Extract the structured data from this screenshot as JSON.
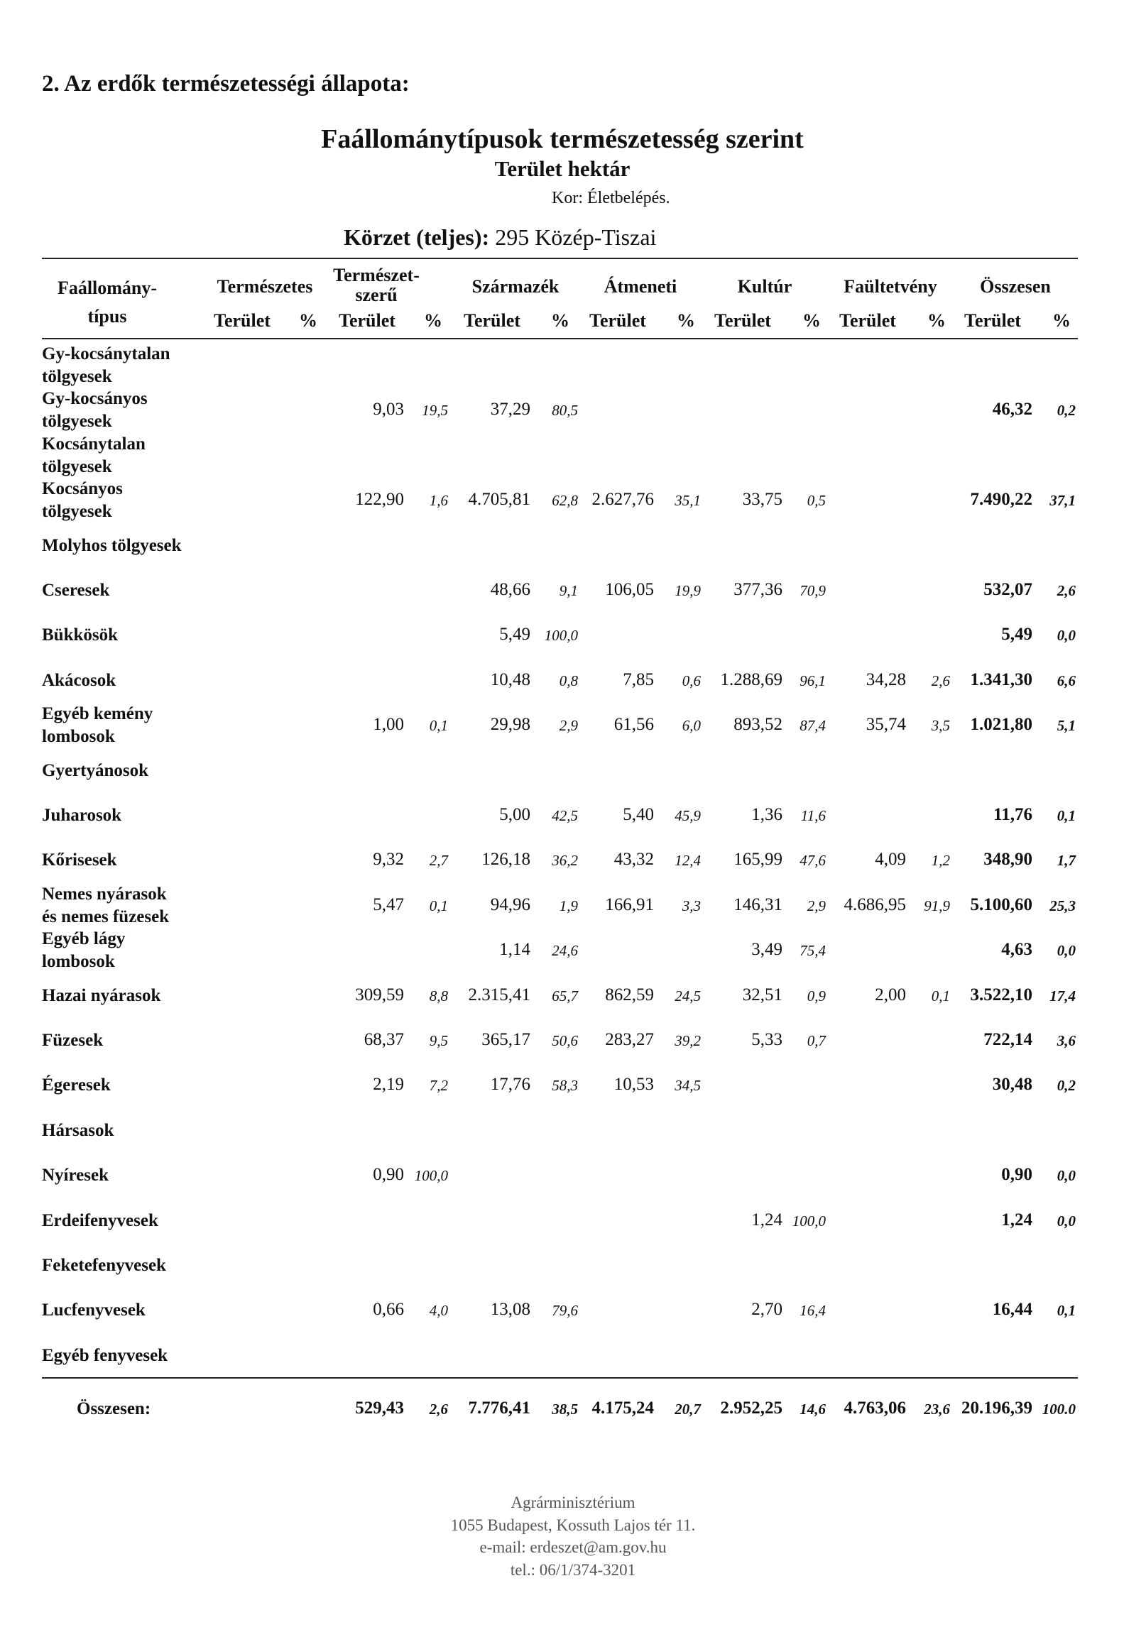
{
  "section_heading": "2. Az erdők természetességi állapota:",
  "title": "Faállománytípusok természetesség szerint",
  "subtitle": "Terület hektár",
  "kor": "Kor: Életbelépés.",
  "korzet_label": "Körzet (teljes):",
  "korzet_value": "295 Közép-Tiszai",
  "table": {
    "type_header": [
      "Faállomány-",
      "típus"
    ],
    "groups": [
      "Természetes",
      "Természet-\nszerű",
      "Származék",
      "Átmeneti",
      "Kultúr",
      "Faültetvény",
      "Összesen"
    ],
    "sub_area": "Terület",
    "sub_pct": "%",
    "rows": [
      {
        "label": "Gy-kocsánytalan\ntölgyesek",
        "cells": [
          null,
          null,
          null,
          null,
          null,
          null
        ]
      },
      {
        "label": "Gy-kocsányos\ntölgyesek",
        "cells": [
          [
            "9,03",
            "19,5"
          ],
          [
            "37,29",
            "80,5"
          ],
          null,
          null,
          null,
          [
            "46,32",
            "0,2"
          ]
        ]
      },
      {
        "label": "Kocsánytalan\ntölgyesek",
        "cells": [
          null,
          null,
          null,
          null,
          null,
          null
        ]
      },
      {
        "label": "Kocsányos\ntölgyesek",
        "cells": [
          [
            "122,90",
            "1,6"
          ],
          [
            "4.705,81",
            "62,8"
          ],
          [
            "2.627,76",
            "35,1"
          ],
          [
            "33,75",
            "0,5"
          ],
          null,
          [
            "7.490,22",
            "37,1"
          ]
        ]
      },
      {
        "label": "Molyhos tölgyesek",
        "cells": [
          null,
          null,
          null,
          null,
          null,
          null
        ]
      },
      {
        "label": "Cseresek",
        "cells": [
          null,
          [
            "48,66",
            "9,1"
          ],
          [
            "106,05",
            "19,9"
          ],
          [
            "377,36",
            "70,9"
          ],
          null,
          [
            "532,07",
            "2,6"
          ]
        ]
      },
      {
        "label": "Bükkösök",
        "cells": [
          null,
          [
            "5,49",
            "100,0"
          ],
          null,
          null,
          null,
          [
            "5,49",
            "0,0"
          ]
        ]
      },
      {
        "label": "Akácosok",
        "cells": [
          null,
          [
            "10,48",
            "0,8"
          ],
          [
            "7,85",
            "0,6"
          ],
          [
            "1.288,69",
            "96,1"
          ],
          [
            "34,28",
            "2,6"
          ],
          [
            "1.341,30",
            "6,6"
          ]
        ]
      },
      {
        "label": "Egyéb kemény\nlombosok",
        "cells": [
          [
            "1,00",
            "0,1"
          ],
          [
            "29,98",
            "2,9"
          ],
          [
            "61,56",
            "6,0"
          ],
          [
            "893,52",
            "87,4"
          ],
          [
            "35,74",
            "3,5"
          ],
          [
            "1.021,80",
            "5,1"
          ]
        ]
      },
      {
        "label": "Gyertyánosok",
        "cells": [
          null,
          null,
          null,
          null,
          null,
          null
        ]
      },
      {
        "label": "Juharosok",
        "cells": [
          null,
          [
            "5,00",
            "42,5"
          ],
          [
            "5,40",
            "45,9"
          ],
          [
            "1,36",
            "11,6"
          ],
          null,
          [
            "11,76",
            "0,1"
          ]
        ]
      },
      {
        "label": "Kőrisesek",
        "cells": [
          [
            "9,32",
            "2,7"
          ],
          [
            "126,18",
            "36,2"
          ],
          [
            "43,32",
            "12,4"
          ],
          [
            "165,99",
            "47,6"
          ],
          [
            "4,09",
            "1,2"
          ],
          [
            "348,90",
            "1,7"
          ]
        ]
      },
      {
        "label": "Nemes nyárasok\nés nemes füzesek",
        "cells": [
          [
            "5,47",
            "0,1"
          ],
          [
            "94,96",
            "1,9"
          ],
          [
            "166,91",
            "3,3"
          ],
          [
            "146,31",
            "2,9"
          ],
          [
            "4.686,95",
            "91,9"
          ],
          [
            "5.100,60",
            "25,3"
          ]
        ]
      },
      {
        "label": "Egyéb lágy\nlombosok",
        "cells": [
          null,
          [
            "1,14",
            "24,6"
          ],
          null,
          [
            "3,49",
            "75,4"
          ],
          null,
          [
            "4,63",
            "0,0"
          ]
        ]
      },
      {
        "label": "Hazai nyárasok",
        "cells": [
          [
            "309,59",
            "8,8"
          ],
          [
            "2.315,41",
            "65,7"
          ],
          [
            "862,59",
            "24,5"
          ],
          [
            "32,51",
            "0,9"
          ],
          [
            "2,00",
            "0,1"
          ],
          [
            "3.522,10",
            "17,4"
          ]
        ]
      },
      {
        "label": "Füzesek",
        "cells": [
          [
            "68,37",
            "9,5"
          ],
          [
            "365,17",
            "50,6"
          ],
          [
            "283,27",
            "39,2"
          ],
          [
            "5,33",
            "0,7"
          ],
          null,
          [
            "722,14",
            "3,6"
          ]
        ]
      },
      {
        "label": "Égeresek",
        "cells": [
          [
            "2,19",
            "7,2"
          ],
          [
            "17,76",
            "58,3"
          ],
          [
            "10,53",
            "34,5"
          ],
          null,
          null,
          [
            "30,48",
            "0,2"
          ]
        ]
      },
      {
        "label": "Hársasok",
        "cells": [
          null,
          null,
          null,
          null,
          null,
          null
        ]
      },
      {
        "label": "Nyíresek",
        "cells": [
          [
            "0,90",
            "100,0"
          ],
          null,
          null,
          null,
          null,
          [
            "0,90",
            "0,0"
          ]
        ]
      },
      {
        "label": "Erdeifenyvesek",
        "cells": [
          null,
          null,
          null,
          [
            "1,24",
            "100,0"
          ],
          null,
          [
            "1,24",
            "0,0"
          ]
        ]
      },
      {
        "label": "Feketefenyvesek",
        "cells": [
          null,
          null,
          null,
          null,
          null,
          null
        ]
      },
      {
        "label": "Lucfenyvesek",
        "cells": [
          [
            "0,66",
            "4,0"
          ],
          [
            "13,08",
            "79,6"
          ],
          null,
          [
            "2,70",
            "16,4"
          ],
          null,
          [
            "16,44",
            "0,1"
          ]
        ]
      },
      {
        "label": "Egyéb fenyvesek",
        "cells": [
          null,
          null,
          null,
          null,
          null,
          null
        ]
      }
    ],
    "total": {
      "label": "Összesen:",
      "cells": [
        [
          "529,43",
          "2,6"
        ],
        [
          "7.776,41",
          "38,5"
        ],
        [
          "4.175,24",
          "20,7"
        ],
        [
          "2.952,25",
          "14,6"
        ],
        [
          "4.763,06",
          "23,6"
        ],
        [
          "20.196,39",
          "100.0"
        ]
      ]
    }
  },
  "footer": [
    "Agrárminisztérium",
    "1055 Budapest, Kossuth Lajos tér 11.",
    "e-mail: erdeszet@am.gov.hu",
    "tel.: 06/1/374-3201"
  ]
}
